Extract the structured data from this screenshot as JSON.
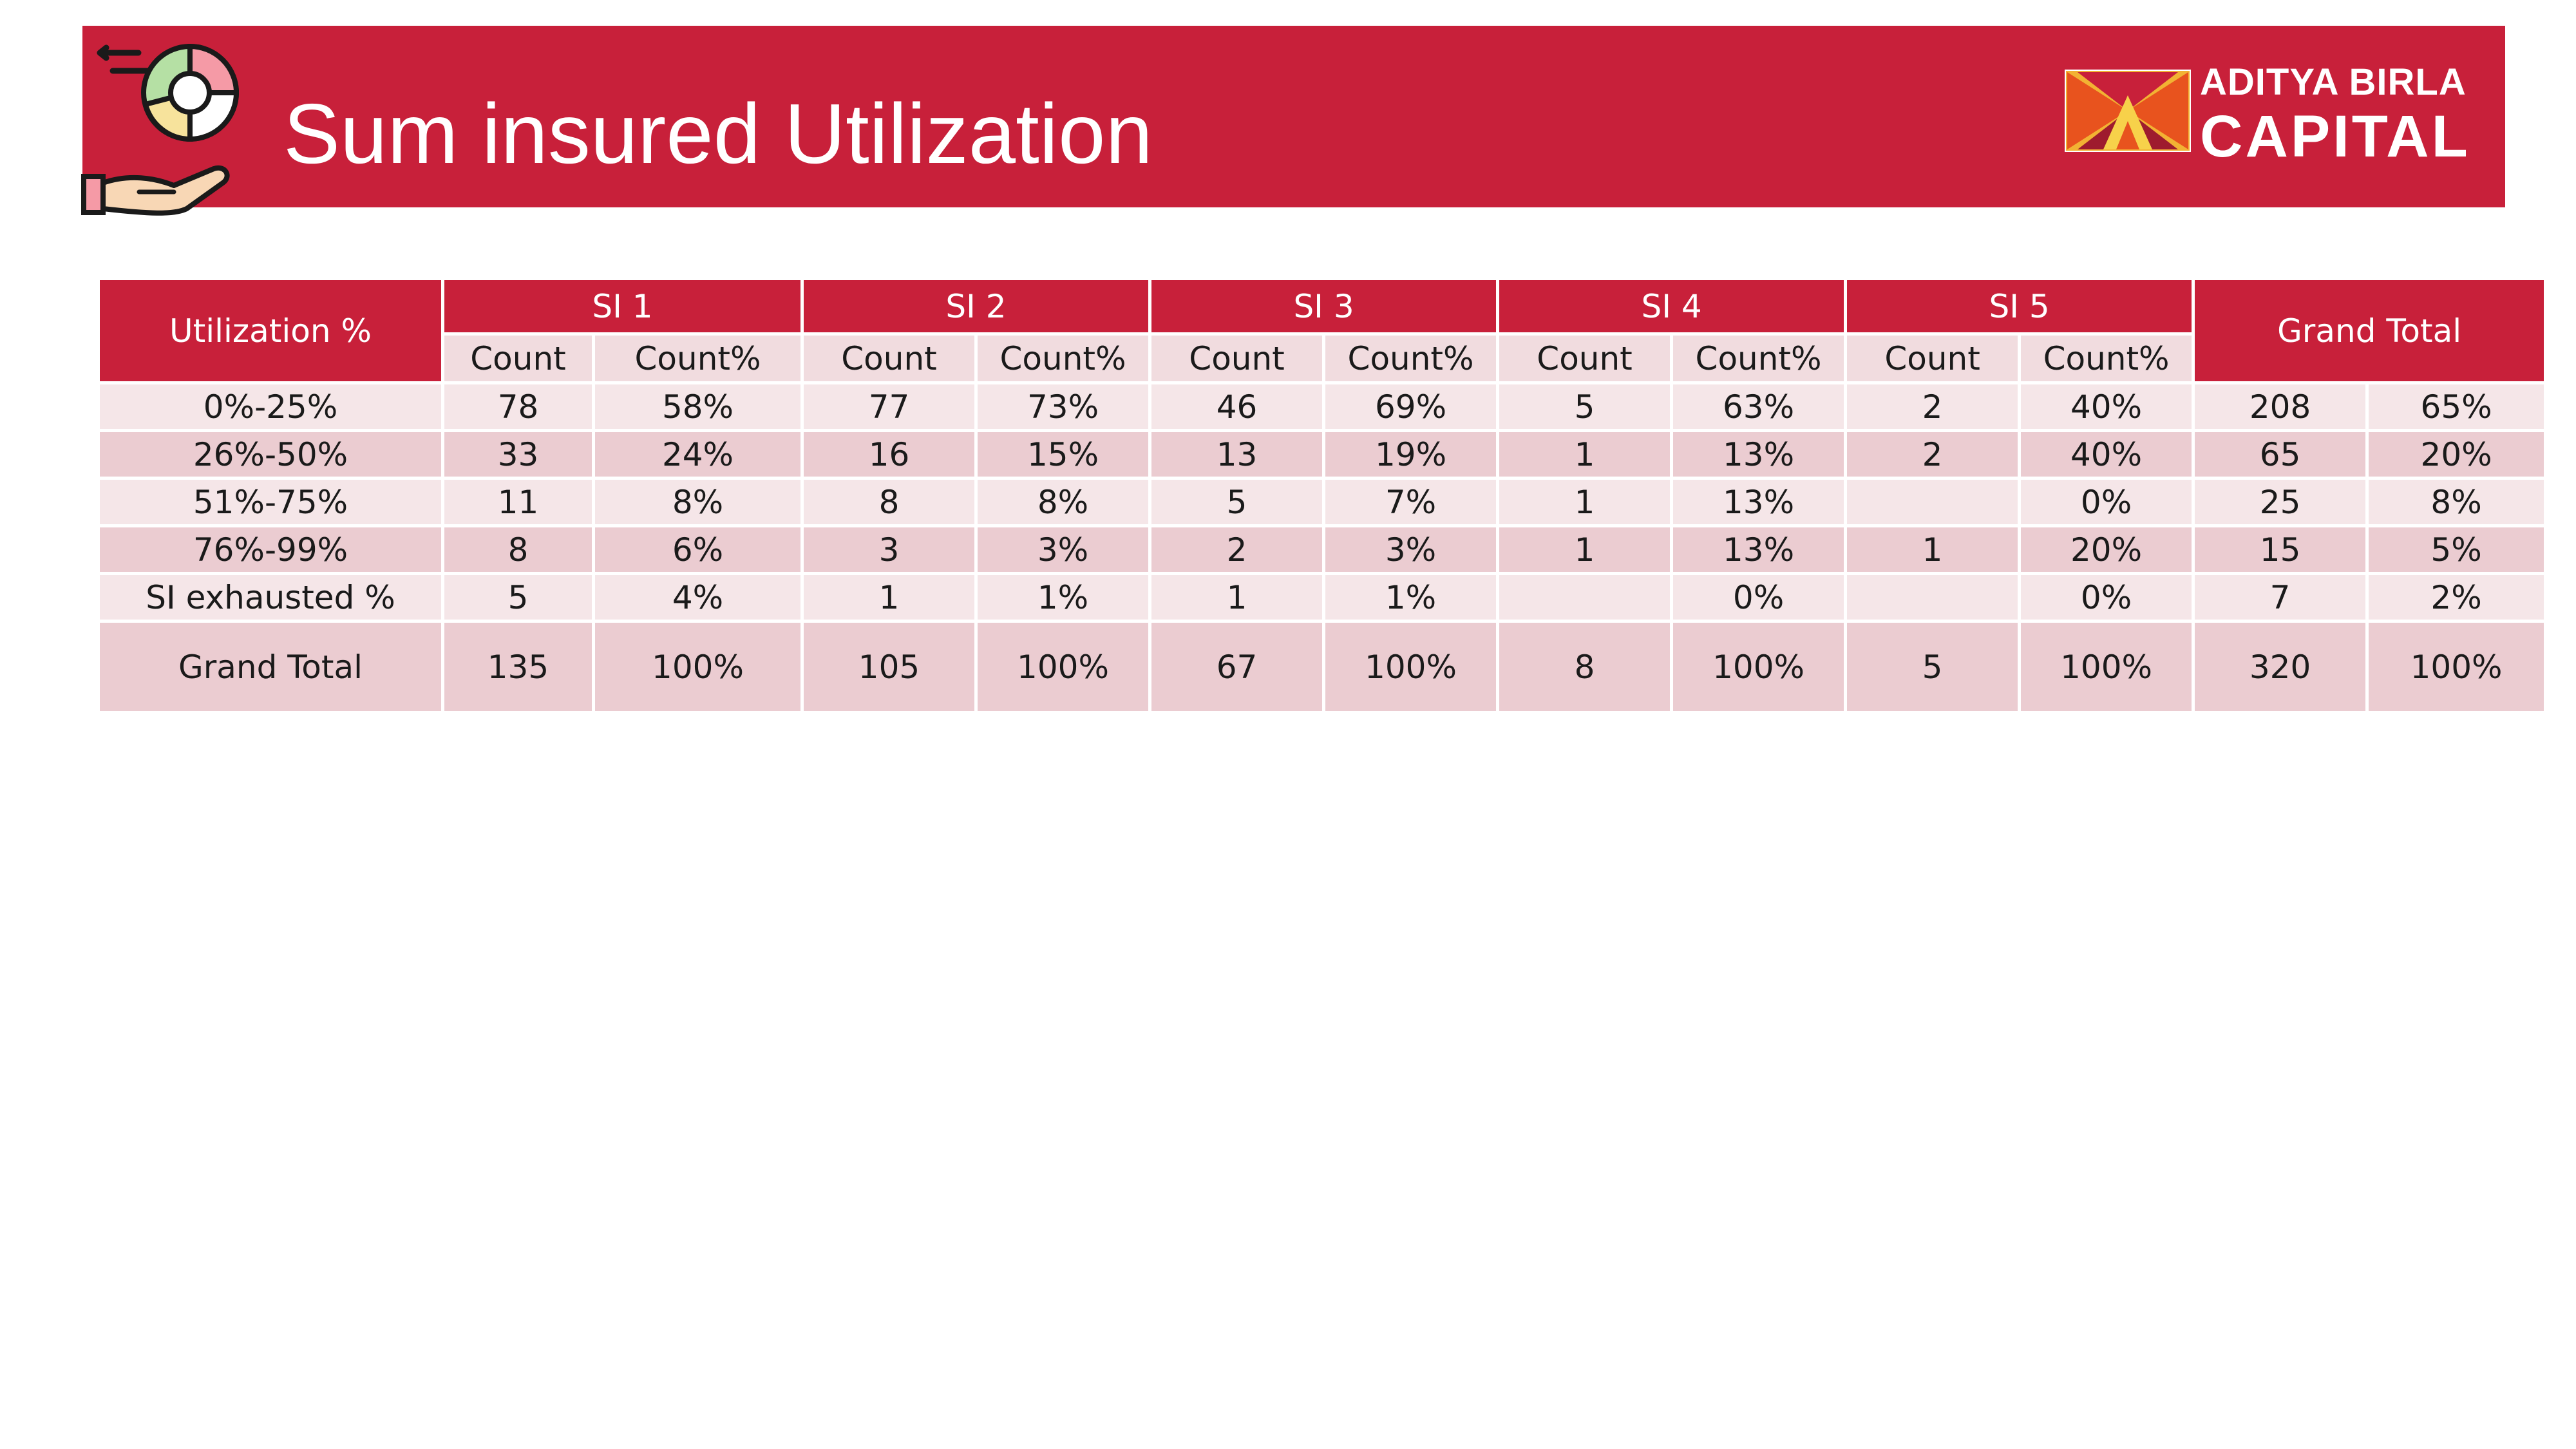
{
  "header": {
    "title": "Sum insured Utilization",
    "brand_line1": "ADITYA BIRLA",
    "brand_line2": "CAPITAL",
    "icon": "hand-holding-pie-chart-icon",
    "colors": {
      "banner": "#c8203a",
      "light_row": "#f5e6e8",
      "dark_row": "#ebccd1"
    }
  },
  "table": {
    "corner_label": "Utilization %",
    "grand_total_label": "Grand Total",
    "groups": [
      "SI 1",
      "SI 2",
      "SI 3",
      "SI 4",
      "SI 5"
    ],
    "sub_headers": [
      "Count",
      "Count%"
    ],
    "rows": [
      {
        "label": "0%-25%",
        "cells": [
          "78",
          "58%",
          "77",
          "73%",
          "46",
          "69%",
          "5",
          "63%",
          "2",
          "40%",
          "208",
          "65%"
        ]
      },
      {
        "label": "26%-50%",
        "cells": [
          "33",
          "24%",
          "16",
          "15%",
          "13",
          "19%",
          "1",
          "13%",
          "2",
          "40%",
          "65",
          "20%"
        ]
      },
      {
        "label": "51%-75%",
        "cells": [
          "11",
          "8%",
          "8",
          "8%",
          "5",
          "7%",
          "1",
          "13%",
          "",
          "0%",
          "25",
          "8%"
        ]
      },
      {
        "label": "76%-99%",
        "cells": [
          "8",
          "6%",
          "3",
          "3%",
          "2",
          "3%",
          "1",
          "13%",
          "1",
          "20%",
          "15",
          "5%"
        ]
      },
      {
        "label": "SI exhausted %",
        "cells": [
          "5",
          "4%",
          "1",
          "1%",
          "1",
          "1%",
          "",
          "0%",
          "",
          "0%",
          "7",
          "2%"
        ]
      }
    ],
    "total_row": {
      "label": "Grand Total",
      "cells": [
        "135",
        "100%",
        "105",
        "100%",
        "67",
        "100%",
        "8",
        "100%",
        "5",
        "100%",
        "320",
        "100%"
      ]
    }
  }
}
